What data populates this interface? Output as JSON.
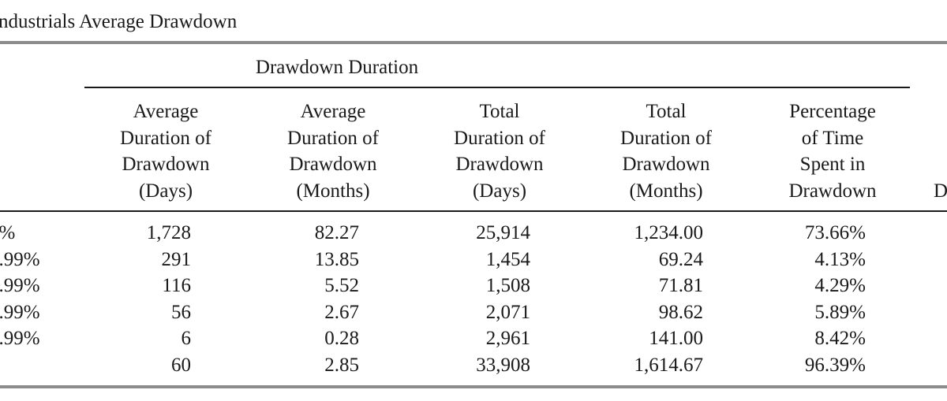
{
  "table": {
    "title": "ndustrials Average Drawdown",
    "group_header": "Drawdown Duration",
    "columns": [
      [
        "Average",
        "Duration of",
        "Drawdown",
        "(Days)"
      ],
      [
        "Average",
        "Duration of",
        "Drawdown",
        "(Months)"
      ],
      [
        "Total",
        "Duration of",
        "Drawdown",
        "(Days)"
      ],
      [
        "Total",
        "Duration of",
        "Drawdown",
        "(Months)"
      ],
      [
        "Percentage",
        "of Time",
        "Spent in",
        "Drawdown"
      ]
    ],
    "partial_header": "D",
    "rows": [
      {
        "label": "0%",
        "values": [
          "1,728",
          "82.27",
          "25,914",
          "1,234.00",
          "73.66%"
        ]
      },
      {
        "label": "9.99%",
        "values": [
          "291",
          "13.85",
          "1,454",
          "69.24",
          "4.13%"
        ]
      },
      {
        "label": "4.99%",
        "values": [
          "116",
          "5.52",
          "1,508",
          "71.81",
          "4.29%"
        ]
      },
      {
        "label": "9.99%",
        "values": [
          "56",
          "2.67",
          "2,071",
          "98.62",
          "5.89%"
        ]
      },
      {
        "label": "4.99%",
        "values": [
          "6",
          "0.28",
          "2,961",
          "141.00",
          "8.42%"
        ]
      },
      {
        "label": "",
        "values": [
          "60",
          "2.85",
          "33,908",
          "1,614.67",
          "96.39%"
        ]
      }
    ]
  }
}
